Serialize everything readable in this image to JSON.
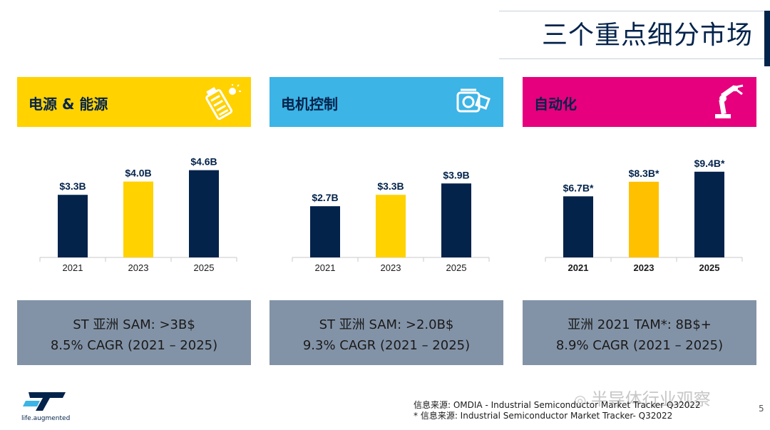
{
  "slide": {
    "title": "三个重点细分市场",
    "page_number": "5",
    "logo_text": "life.augmented",
    "watermark": "半导体行业观察",
    "footnotes": [
      "信息来源: OMDIA - Industrial Semiconductor Market Tracker Q32022",
      "* 信息来源: Industrial Semiconductor Market Tracker- Q32022"
    ]
  },
  "colors": {
    "navy": "#03234b",
    "yellow": "#ffd200",
    "cyan": "#3cb4e6",
    "magenta": "#e6007e",
    "gold": "#ffc000",
    "summary_bg": "#8393a7"
  },
  "panels": [
    {
      "label": "电源 & 能源",
      "icon": "battery-charging-icon",
      "header_color": "#ffd200",
      "sam_line1": "ST 亚洲 SAM: >3B$",
      "sam_line2": "8.5% CAGR (2021 – 2025)"
    },
    {
      "label": "电机控制",
      "icon": "motor-icon",
      "header_color": "#3cb4e6",
      "sam_line1": "ST  亚洲 SAM: >2.0B$",
      "sam_line2": "9.3% CAGR (2021 – 2025)"
    },
    {
      "label": "自动化",
      "icon": "robot-arm-icon",
      "header_color": "#e6007e",
      "sam_line1": "亚洲 2021 TAM*: 8B$+",
      "sam_line2": "8.9% CAGR (2021 – 2025)"
    }
  ],
  "chart_data": [
    {
      "type": "bar",
      "categories": [
        "2021",
        "2023",
        "2025"
      ],
      "values": [
        3.3,
        4.0,
        4.6
      ],
      "labels": [
        "$3.3B",
        "$4.0B",
        "$4.6B"
      ],
      "bar_colors": [
        "#03234b",
        "#ffd200",
        "#03234b"
      ],
      "ylim": [
        0,
        5
      ],
      "bold_ticks": false
    },
    {
      "type": "bar",
      "categories": [
        "2021",
        "2023",
        "2025"
      ],
      "values": [
        2.7,
        3.3,
        3.9
      ],
      "labels": [
        "$2.7B",
        "$3.3B",
        "$3.9B"
      ],
      "bar_colors": [
        "#03234b",
        "#ffd200",
        "#03234b"
      ],
      "ylim": [
        0,
        5
      ],
      "bold_ticks": false
    },
    {
      "type": "bar",
      "categories": [
        "2021",
        "2023",
        "2025"
      ],
      "values": [
        6.7,
        8.3,
        9.4
      ],
      "labels": [
        "$6.7B*",
        "$8.3B*",
        "$9.4B*"
      ],
      "bar_colors": [
        "#03234b",
        "#ffc000",
        "#03234b"
      ],
      "ylim": [
        0,
        10.4
      ],
      "bold_ticks": true
    }
  ]
}
